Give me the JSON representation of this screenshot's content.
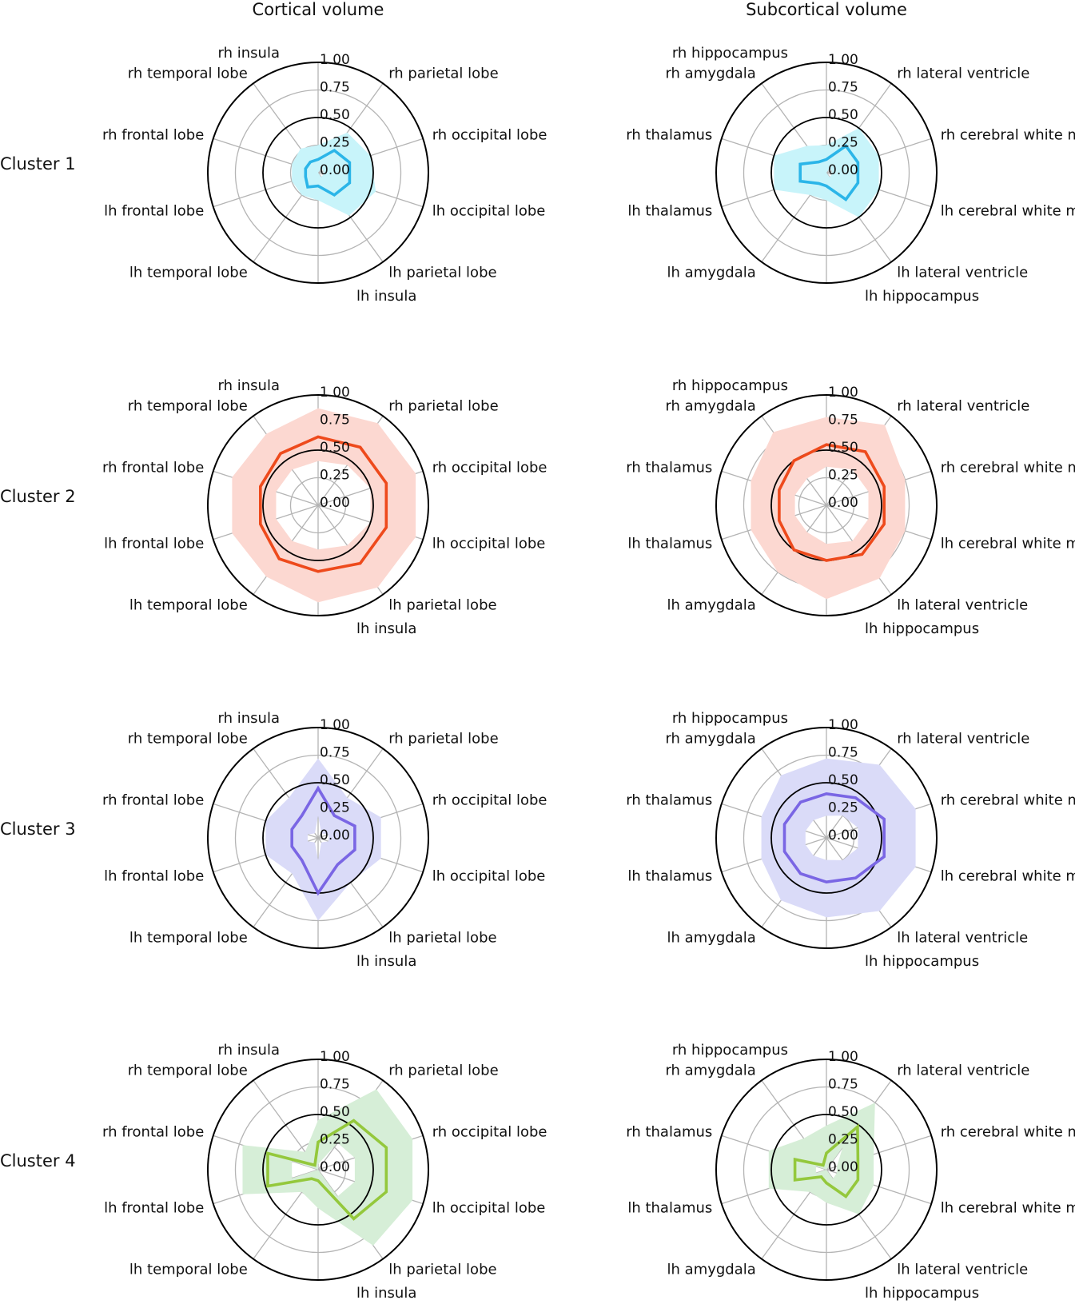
{
  "chart_data": {
    "type": "radar",
    "column_titles": [
      "Cortical volume",
      "Subcortical volume"
    ],
    "row_labels": [
      "Cluster 1",
      "Cluster 2",
      "Cluster 3",
      "Cluster 4"
    ],
    "radial_ticks": [
      "0.00",
      "0.25",
      "0.50",
      "0.75",
      "1.00"
    ],
    "rlim": [
      0,
      1
    ],
    "reference_ring": 0.5,
    "cortical_axes": [
      "rh frontal lobe",
      "rh temporal lobe",
      "rh insula",
      "rh parietal lobe",
      "rh occipital lobe",
      "lh occipital lobe",
      "lh parietal lobe",
      "lh insula",
      "lh temporal lobe",
      "lh frontal lobe"
    ],
    "subcortical_axes": [
      "rh thalamus",
      "rh amygdala",
      "rh hippocampus",
      "rh lateral ventricle",
      "rh cerebral white matter",
      "lh cerebral white matter",
      "lh lateral ventricle",
      "lh hippocampus",
      "lh amygdala",
      "lh thalamus"
    ],
    "colors": {
      "Cluster 1": {
        "line": "#2bb5e8",
        "band": "#c8f4fa"
      },
      "Cluster 2": {
        "line": "#ee4a1c",
        "band": "#fcd8d1"
      },
      "Cluster 3": {
        "line": "#7a66e4",
        "band": "#dadbf8"
      },
      "Cluster 4": {
        "line": "#94c83c",
        "band": "#d6eed7"
      }
    },
    "panels": [
      {
        "row": "Cluster 1",
        "column": "Cortical volume",
        "mean": [
          0.12,
          0.12,
          0.12,
          0.25,
          0.3,
          0.3,
          0.25,
          0.12,
          0.16,
          0.12
        ],
        "lower": [
          0.0,
          0.0,
          0.0,
          0.05,
          0.05,
          0.05,
          0.05,
          0.0,
          0.0,
          0.0
        ],
        "upper": [
          0.25,
          0.27,
          0.25,
          0.45,
          0.5,
          0.55,
          0.48,
          0.25,
          0.25,
          0.25
        ]
      },
      {
        "row": "Cluster 1",
        "column": "Subcortical volume",
        "mean": [
          0.25,
          0.12,
          0.12,
          0.3,
          0.3,
          0.3,
          0.3,
          0.12,
          0.12,
          0.25
        ],
        "lower": [
          0.0,
          0.0,
          0.0,
          0.05,
          0.05,
          0.05,
          0.05,
          0.0,
          0.0,
          0.0
        ],
        "upper": [
          0.5,
          0.3,
          0.25,
          0.5,
          0.5,
          0.5,
          0.5,
          0.25,
          0.25,
          0.5
        ]
      },
      {
        "row": "Cluster 2",
        "column": "Cortical volume",
        "mean": [
          0.55,
          0.58,
          0.62,
          0.65,
          0.65,
          0.65,
          0.65,
          0.6,
          0.6,
          0.55
        ],
        "lower": [
          0.4,
          0.4,
          0.4,
          0.45,
          0.5,
          0.5,
          0.45,
          0.4,
          0.4,
          0.4
        ],
        "upper": [
          0.82,
          0.8,
          0.88,
          0.92,
          0.93,
          0.93,
          0.92,
          0.88,
          0.8,
          0.82
        ]
      },
      {
        "row": "Cluster 2",
        "column": "Subcortical volume",
        "mean": [
          0.45,
          0.5,
          0.55,
          0.6,
          0.55,
          0.55,
          0.55,
          0.5,
          0.5,
          0.45
        ],
        "lower": [
          0.3,
          0.3,
          0.35,
          0.4,
          0.4,
          0.4,
          0.4,
          0.35,
          0.3,
          0.3
        ],
        "upper": [
          0.72,
          0.82,
          0.8,
          0.9,
          0.75,
          0.75,
          0.82,
          0.85,
          0.75,
          0.72
        ]
      },
      {
        "row": "Cluster 3",
        "column": "Cortical volume",
        "mean": [
          0.25,
          0.25,
          0.45,
          0.25,
          0.35,
          0.35,
          0.3,
          0.5,
          0.25,
          0.25
        ],
        "lower": [
          0.1,
          0.05,
          0.2,
          0.05,
          0.1,
          0.1,
          0.05,
          0.2,
          0.05,
          0.1
        ],
        "upper": [
          0.5,
          0.45,
          0.72,
          0.45,
          0.6,
          0.6,
          0.5,
          0.75,
          0.4,
          0.5
        ]
      },
      {
        "row": "Cluster 3",
        "column": "Subcortical volume",
        "mean": [
          0.4,
          0.4,
          0.4,
          0.45,
          0.55,
          0.55,
          0.45,
          0.4,
          0.4,
          0.4
        ],
        "lower": [
          0.2,
          0.2,
          0.2,
          0.25,
          0.3,
          0.3,
          0.25,
          0.2,
          0.2,
          0.2
        ],
        "upper": [
          0.62,
          0.7,
          0.72,
          0.82,
          0.85,
          0.85,
          0.82,
          0.72,
          0.7,
          0.62
        ]
      },
      {
        "row": "Cluster 4",
        "column": "Cortical volume",
        "mean": [
          0.48,
          0.05,
          0.25,
          0.55,
          0.65,
          0.65,
          0.55,
          0.1,
          0.1,
          0.48
        ],
        "lower": [
          0.25,
          0.0,
          0.05,
          0.3,
          0.35,
          0.35,
          0.3,
          0.0,
          0.0,
          0.25
        ],
        "upper": [
          0.72,
          0.2,
          0.45,
          0.9,
          0.9,
          0.9,
          0.85,
          0.35,
          0.25,
          0.72
        ]
      },
      {
        "row": "Cluster 4",
        "column": "Subcortical volume",
        "mean": [
          0.3,
          0.05,
          0.15,
          0.48,
          0.3,
          0.3,
          0.3,
          0.12,
          0.08,
          0.3
        ],
        "lower": [
          0.1,
          0.0,
          0.0,
          0.25,
          0.1,
          0.1,
          0.1,
          0.0,
          0.0,
          0.1
        ],
        "upper": [
          0.55,
          0.35,
          0.4,
          0.75,
          0.45,
          0.45,
          0.5,
          0.3,
          0.25,
          0.55
        ]
      }
    ]
  }
}
